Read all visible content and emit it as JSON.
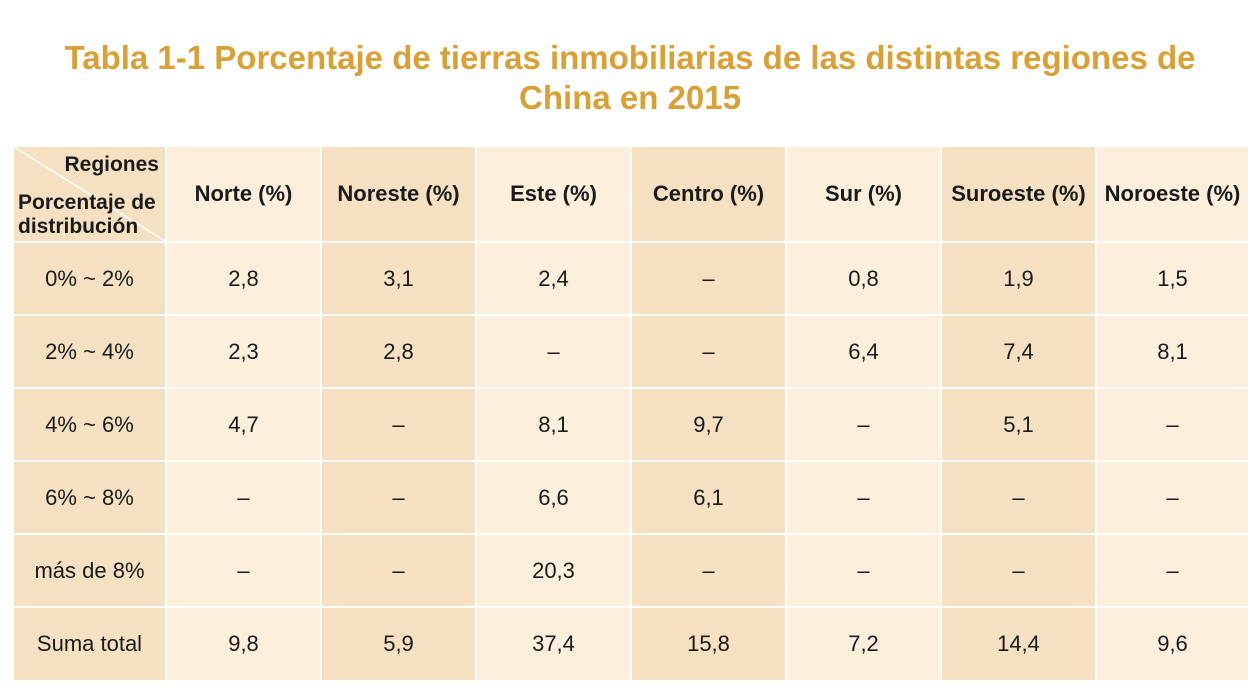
{
  "title": {
    "line1": "Tabla 1-1 Porcentaje de tierras inmobiliarias de las distintas regiones de",
    "line2": "China en 2015"
  },
  "table": {
    "corner_top": "Regiones",
    "corner_bottom": "Porcentaje de distribución",
    "columns": [
      "Norte (%)",
      "Noreste (%)",
      "Este (%)",
      "Centro (%)",
      "Sur (%)",
      "Suroeste (%)",
      "Noroeste (%)"
    ],
    "rows": [
      {
        "label": "0% ~ 2%",
        "cells": [
          "2,8",
          "3,1",
          "2,4",
          "–",
          "0,8",
          "1,9",
          "1,5"
        ]
      },
      {
        "label": "2% ~ 4%",
        "cells": [
          "2,3",
          "2,8",
          "–",
          "–",
          "6,4",
          "7,4",
          "8,1"
        ]
      },
      {
        "label": "4% ~ 6%",
        "cells": [
          "4,7",
          "–",
          "8,1",
          "9,7",
          "–",
          "5,1",
          "–"
        ]
      },
      {
        "label": "6% ~ 8%",
        "cells": [
          "–",
          "–",
          "6,6",
          "6,1",
          "–",
          "–",
          "–"
        ]
      },
      {
        "label": "más de 8%",
        "cells": [
          "–",
          "–",
          "20,3",
          "–",
          "–",
          "–",
          "–"
        ]
      },
      {
        "label": "Suma total",
        "cells": [
          "9,8",
          "5,9",
          "37,4",
          "15,8",
          "7,2",
          "14,4",
          "9,6"
        ]
      }
    ]
  },
  "colors": {
    "title": "#d9a035",
    "cell_light": "#fbeedb",
    "cell_dark": "#f5e1c2"
  }
}
